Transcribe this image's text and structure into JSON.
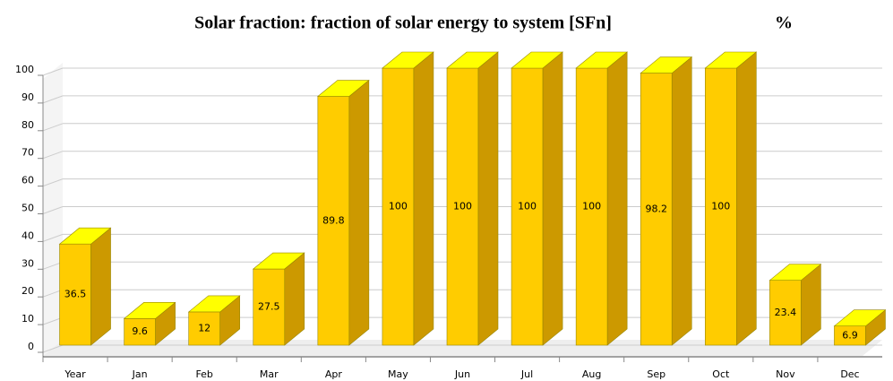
{
  "chart_data": {
    "type": "bar3d",
    "title": "Solar fraction: fraction of solar energy to system [SFn]",
    "unit_label": "%",
    "categories": [
      "Year",
      "Jan",
      "Feb",
      "Mar",
      "Apr",
      "May",
      "Jun",
      "Jul",
      "Aug",
      "Sep",
      "Oct",
      "Nov",
      "Dec"
    ],
    "values": [
      36.5,
      9.6,
      12,
      27.5,
      89.8,
      100,
      100,
      100,
      100,
      98.2,
      100,
      23.4,
      6.9
    ],
    "color": "#ffcc00",
    "top_color": "#ffff00",
    "side_color": "#cc9900",
    "ylim": [
      0,
      100
    ],
    "yticks": [
      0,
      10,
      20,
      30,
      40,
      50,
      60,
      70,
      80,
      90,
      100
    ],
    "grid": true
  }
}
